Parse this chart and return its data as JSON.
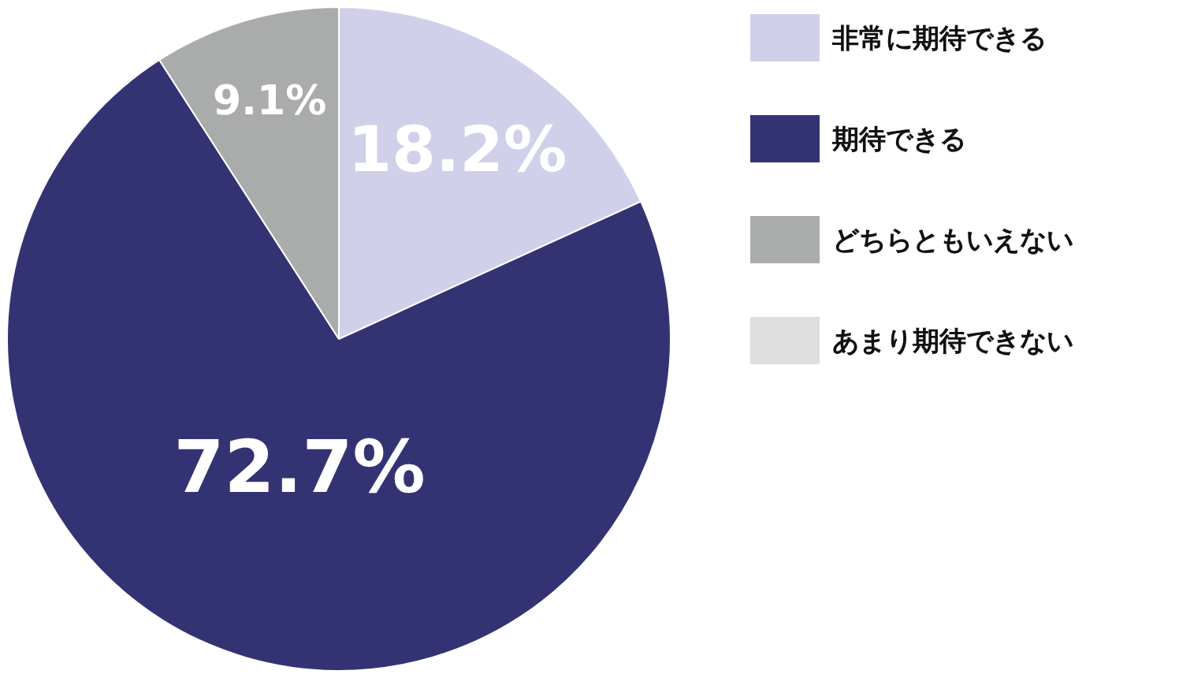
{
  "chart_data": {
    "type": "pie",
    "categories": [
      "非常に期待できる",
      "期待できる",
      "どちらともいえない",
      "あまり期待できない"
    ],
    "values": [
      18.2,
      72.7,
      9.1,
      0
    ],
    "colors": [
      "#d0d0ea",
      "#333374",
      "#aaacab",
      "#dedede"
    ],
    "value_labels": [
      "18.2%",
      "72.7%",
      "9.1%",
      null
    ],
    "legend": "top right"
  }
}
